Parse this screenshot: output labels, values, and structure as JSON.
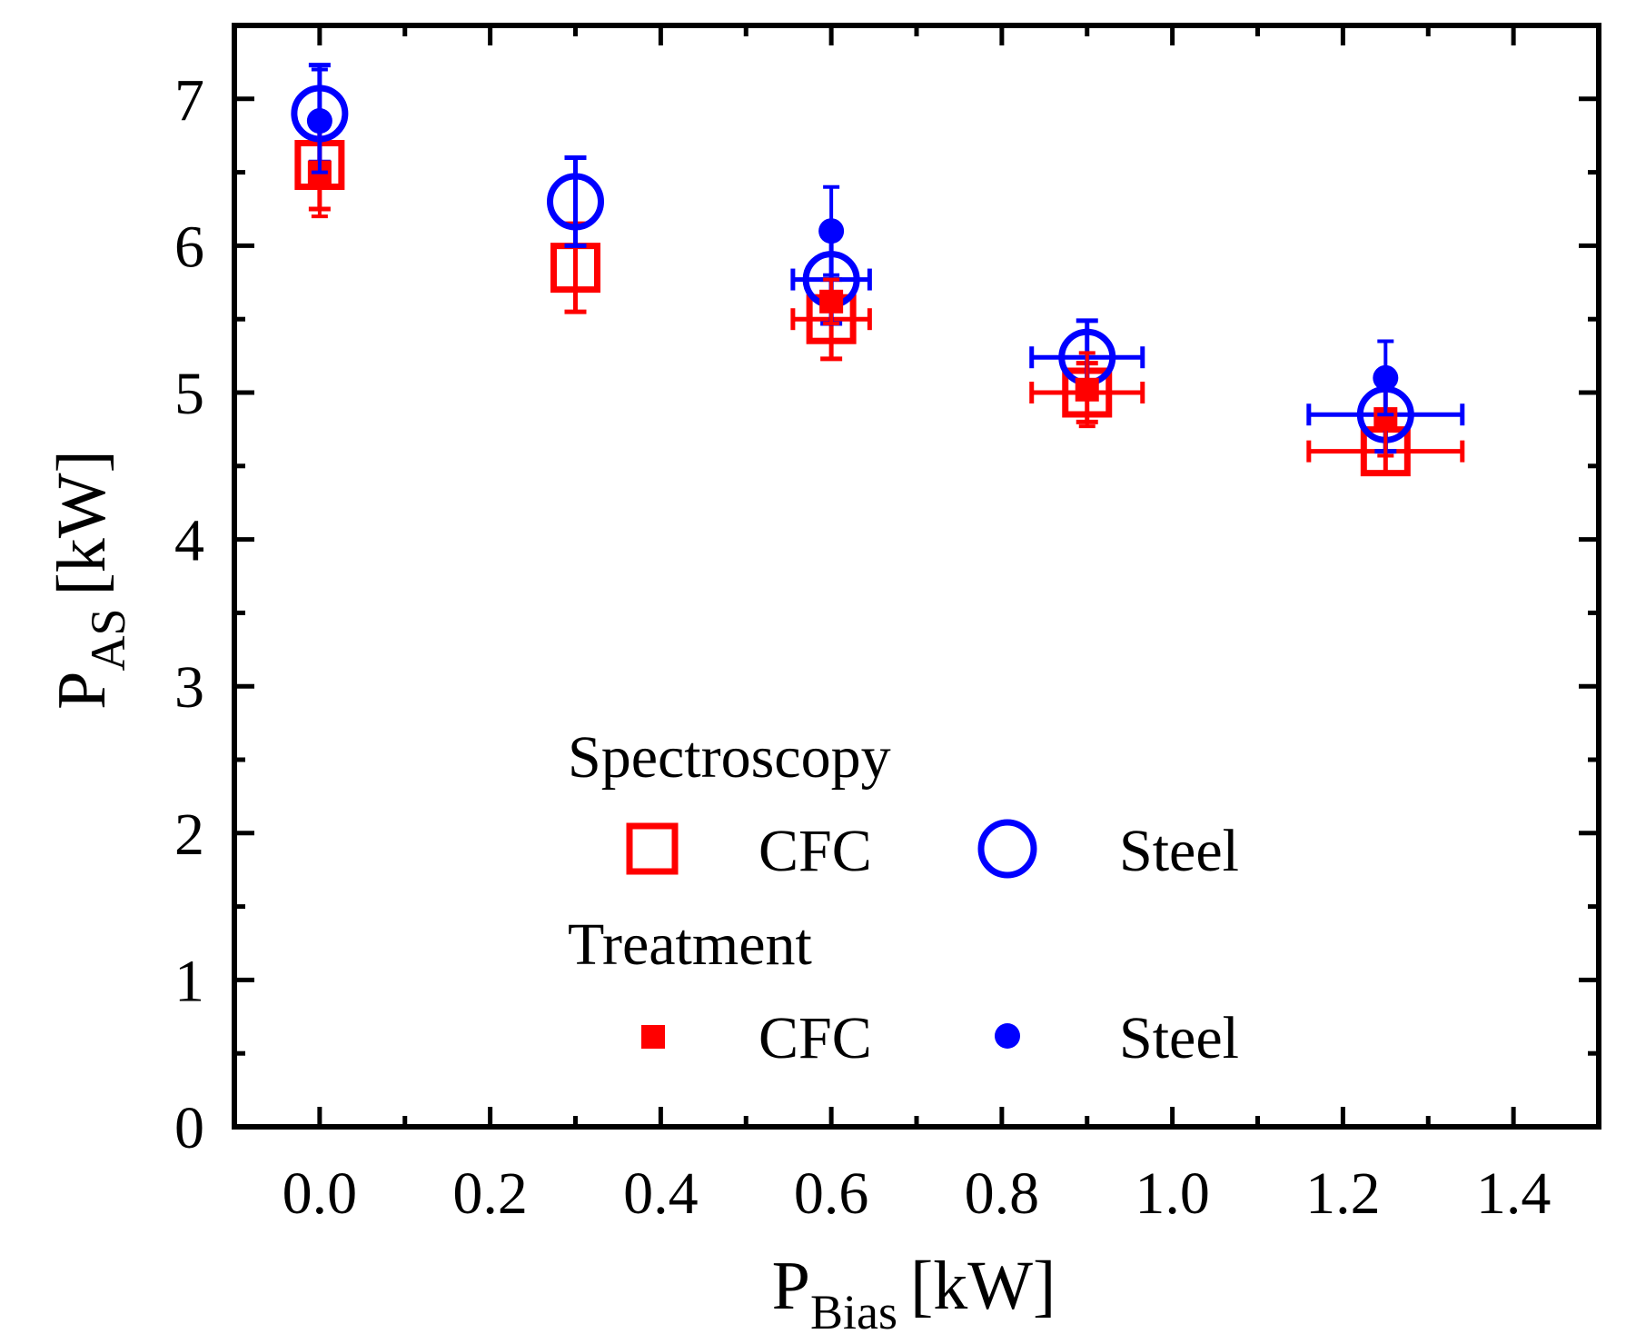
{
  "chart_data": {
    "type": "scatter",
    "xlabel": {
      "main": "P",
      "sub": "Bias",
      "unit": "[kW]"
    },
    "ylabel": {
      "main": "P",
      "sub": "AS",
      "unit": "[kW]"
    },
    "xlim": [
      -0.1,
      1.5
    ],
    "ylim": [
      0,
      7.5
    ],
    "x_ticks": [
      0.0,
      0.2,
      0.4,
      0.6,
      0.8,
      1.0,
      1.2,
      1.4
    ],
    "x_tick_labels": [
      "0.0",
      "0.2",
      "0.4",
      "0.6",
      "0.8",
      "1.0",
      "1.2",
      "1.4"
    ],
    "y_ticks": [
      0,
      1,
      2,
      3,
      4,
      5,
      6,
      7
    ],
    "y_tick_labels": [
      "0",
      "1",
      "2",
      "3",
      "4",
      "5",
      "6",
      "7"
    ],
    "grid": false,
    "legend": {
      "placement": "bottom-center",
      "groups": [
        {
          "title": "Spectroscopy",
          "entries": [
            {
              "label": "CFC",
              "series": "spec_cfc"
            },
            {
              "label": "Steel",
              "series": "spec_steel"
            }
          ]
        },
        {
          "title": "Treatment",
          "entries": [
            {
              "label": "CFC",
              "series": "treat_cfc"
            },
            {
              "label": "Steel",
              "series": "treat_steel"
            }
          ]
        }
      ]
    },
    "series": [
      {
        "id": "spec_cfc",
        "name": "Spectroscopy CFC",
        "marker": "open-square",
        "color": "#ff0000",
        "points": [
          {
            "x": 0.0,
            "y": 6.55,
            "yerr": 0.3
          },
          {
            "x": 0.3,
            "y": 5.85,
            "yerr": 0.3
          },
          {
            "x": 0.6,
            "y": 5.5,
            "yerr": 0.27,
            "xerr": 0.045
          },
          {
            "x": 0.9,
            "y": 5.0,
            "yerr": 0.2,
            "xerr": 0.065
          },
          {
            "x": 1.25,
            "y": 4.6,
            "yerr": 0.15,
            "xerr": 0.09
          }
        ]
      },
      {
        "id": "spec_steel",
        "name": "Spectroscopy Steel",
        "marker": "open-circle",
        "color": "#0000ff",
        "points": [
          {
            "x": 0.0,
            "y": 6.9,
            "yerr": 0.33
          },
          {
            "x": 0.3,
            "y": 6.3,
            "yerr": 0.3
          },
          {
            "x": 0.6,
            "y": 5.77,
            "yerr": 0.3,
            "xerr": 0.045
          },
          {
            "x": 0.9,
            "y": 5.24,
            "yerr": 0.25,
            "xerr": 0.065
          },
          {
            "x": 1.25,
            "y": 4.85,
            "yerr": 0.25,
            "xerr": 0.09
          }
        ]
      },
      {
        "id": "treat_cfc",
        "name": "Treatment CFC",
        "marker": "filled-square",
        "color": "#ff0000",
        "points": [
          {
            "x": 0.0,
            "y": 6.5,
            "yerr": 0.3
          },
          {
            "x": 0.6,
            "y": 5.62,
            "yerr": 0.15
          },
          {
            "x": 0.9,
            "y": 5.02,
            "yerr": 0.25
          },
          {
            "x": 1.25,
            "y": 4.82,
            "yerr": 0.25
          }
        ]
      },
      {
        "id": "treat_steel",
        "name": "Treatment Steel",
        "marker": "filled-circle",
        "color": "#0000ff",
        "points": [
          {
            "x": 0.0,
            "y": 6.85,
            "yerr": 0.35
          },
          {
            "x": 0.6,
            "y": 6.1,
            "yerr": 0.3
          },
          {
            "x": 1.25,
            "y": 5.1,
            "yerr": 0.25
          }
        ]
      }
    ]
  }
}
